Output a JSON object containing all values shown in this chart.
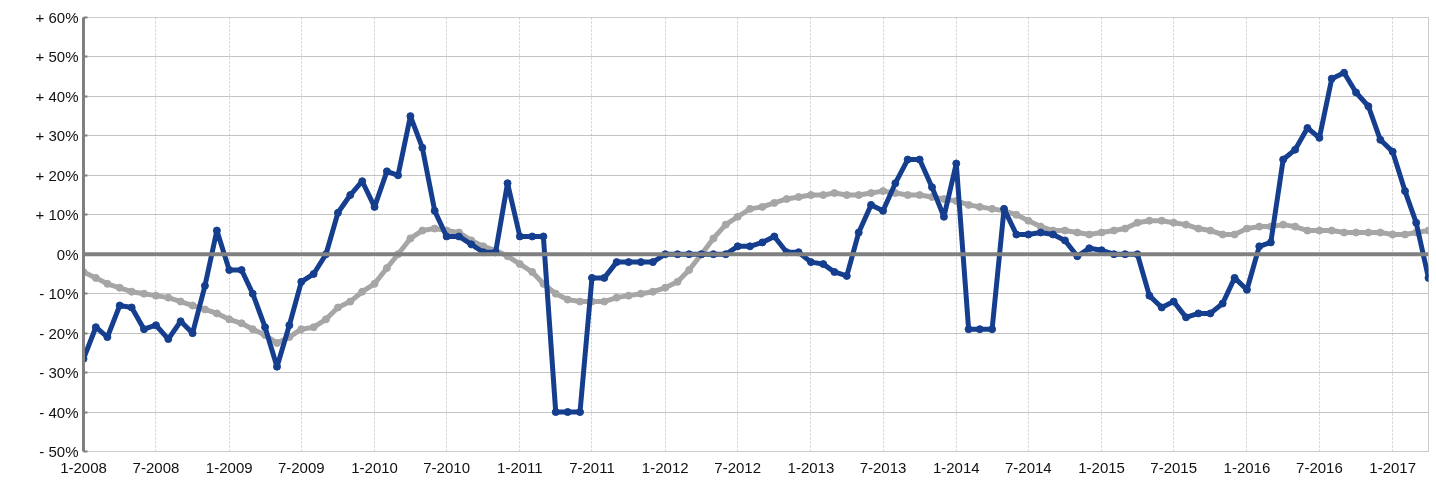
{
  "chart_data": {
    "type": "line",
    "x": [
      "2008-01",
      "2008-02",
      "2008-03",
      "2008-04",
      "2008-05",
      "2008-06",
      "2008-07",
      "2008-08",
      "2008-09",
      "2008-10",
      "2008-11",
      "2008-12",
      "2009-01",
      "2009-02",
      "2009-03",
      "2009-04",
      "2009-05",
      "2009-06",
      "2009-07",
      "2009-08",
      "2009-09",
      "2009-10",
      "2009-11",
      "2009-12",
      "2010-01",
      "2010-02",
      "2010-03",
      "2010-04",
      "2010-05",
      "2010-06",
      "2010-07",
      "2010-08",
      "2010-09",
      "2010-10",
      "2010-11",
      "2010-12",
      "2011-01",
      "2011-02",
      "2011-03",
      "2011-04",
      "2011-05",
      "2011-06",
      "2011-07",
      "2011-08",
      "2011-09",
      "2011-10",
      "2011-11",
      "2011-12",
      "2012-01",
      "2012-02",
      "2012-03",
      "2012-04",
      "2012-05",
      "2012-06",
      "2012-07",
      "2012-08",
      "2012-09",
      "2012-10",
      "2012-11",
      "2012-12",
      "2013-01",
      "2013-02",
      "2013-03",
      "2013-04",
      "2013-05",
      "2013-06",
      "2013-07",
      "2013-08",
      "2013-09",
      "2013-10",
      "2013-11",
      "2013-12",
      "2014-01",
      "2014-02",
      "2014-03",
      "2014-04",
      "2014-05",
      "2014-06",
      "2014-07",
      "2014-08",
      "2014-09",
      "2014-10",
      "2014-11",
      "2014-12",
      "2015-01",
      "2015-02",
      "2015-03",
      "2015-04",
      "2015-05",
      "2015-06",
      "2015-07",
      "2015-08",
      "2015-09",
      "2015-10",
      "2015-11",
      "2015-12",
      "2016-01",
      "2016-02",
      "2016-03",
      "2016-04",
      "2016-05",
      "2016-06",
      "2016-07",
      "2016-08",
      "2016-09",
      "2016-10",
      "2016-11",
      "2016-12",
      "2017-01",
      "2017-02",
      "2017-03",
      "2017-04"
    ],
    "series": [
      {
        "color": "#a6a6a6",
        "values": [
          -4.5,
          -6,
          -7.5,
          -8.5,
          -9.5,
          -10,
          -10.5,
          -11,
          -12,
          -13,
          -14,
          -15,
          -16.5,
          -17.5,
          -19,
          -20.5,
          -22.5,
          -21,
          -19,
          -18.5,
          -16.5,
          -13.5,
          -12,
          -9.5,
          -7.5,
          -3.5,
          0,
          4,
          6,
          6.5,
          6,
          5.5,
          3.5,
          2,
          1,
          -0.5,
          -2.5,
          -4.5,
          -7.5,
          -10,
          -11.5,
          -12,
          -12,
          -12,
          -11,
          -10.5,
          -10,
          -9.5,
          -8.5,
          -7,
          -4,
          0,
          4,
          7.5,
          9.5,
          11.5,
          12,
          13,
          14,
          14.5,
          15,
          15,
          15.5,
          15,
          15,
          15.5,
          16,
          15.5,
          15,
          15,
          14.5,
          14,
          13.5,
          12.5,
          12,
          11.5,
          11,
          10,
          8.5,
          7,
          6,
          6,
          5.5,
          5,
          5.5,
          6,
          6.5,
          8,
          8.5,
          8.5,
          8,
          7.5,
          6.5,
          6,
          5,
          5,
          6.5,
          7,
          7,
          7.5,
          7,
          6,
          6,
          6,
          5.5,
          5.5,
          5.5,
          5.5,
          5,
          5,
          5.5,
          6
        ]
      },
      {
        "color": "#153f8e",
        "values": [
          -26.5,
          -18.5,
          -21,
          -13,
          -13.5,
          -19,
          -18,
          -21.5,
          -17,
          -20,
          -8,
          6,
          -4,
          -4,
          -10,
          -18.5,
          -28.5,
          -18,
          -7,
          -5,
          0,
          10.5,
          15,
          18.5,
          12,
          21,
          20,
          35,
          27,
          11,
          4.5,
          4.5,
          2.5,
          0.5,
          0.5,
          18,
          4.5,
          4.5,
          4.5,
          -40,
          -40,
          -40,
          -6,
          -6,
          -2,
          -2,
          -2,
          -2,
          0,
          0,
          0,
          0,
          0,
          0,
          2,
          2,
          3,
          4.5,
          0.5,
          0.5,
          -2,
          -2.5,
          -4.5,
          -5.5,
          5.5,
          12.5,
          11,
          18,
          24,
          24,
          17,
          9.5,
          23,
          -19,
          -19,
          -19,
          11.5,
          5,
          5,
          5.5,
          5,
          3.5,
          -0.5,
          1.5,
          1,
          0,
          0,
          0,
          -10.5,
          -13.5,
          -12,
          -16,
          -15,
          -15,
          -12.5,
          -6,
          -9,
          2,
          3,
          24,
          26.5,
          32,
          29.5,
          44.5,
          46,
          41,
          37.5,
          29,
          26,
          16,
          8,
          -6
        ]
      }
    ],
    "xlim": [
      "2008-01",
      "2017-04"
    ],
    "xticks": [
      {
        "value": "2008-01",
        "label": "1-2008"
      },
      {
        "value": "2008-07",
        "label": "7-2008"
      },
      {
        "value": "2009-01",
        "label": "1-2009"
      },
      {
        "value": "2009-07",
        "label": "7-2009"
      },
      {
        "value": "2010-01",
        "label": "1-2010"
      },
      {
        "value": "2010-07",
        "label": "7-2010"
      },
      {
        "value": "2011-01",
        "label": "1-2011"
      },
      {
        "value": "2011-07",
        "label": "7-2011"
      },
      {
        "value": "2012-01",
        "label": "1-2012"
      },
      {
        "value": "2012-07",
        "label": "7-2012"
      },
      {
        "value": "2013-01",
        "label": "1-2013"
      },
      {
        "value": "2013-07",
        "label": "7-2013"
      },
      {
        "value": "2014-01",
        "label": "1-2014"
      },
      {
        "value": "2014-07",
        "label": "7-2014"
      },
      {
        "value": "2015-01",
        "label": "1-2015"
      },
      {
        "value": "2015-07",
        "label": "7-2015"
      },
      {
        "value": "2016-01",
        "label": "1-2016"
      },
      {
        "value": "2016-07",
        "label": "7-2016"
      },
      {
        "value": "2017-01",
        "label": "1-2017"
      }
    ],
    "ylim": [
      -50,
      60
    ],
    "yticks": [
      {
        "value": -50,
        "label": "- 50%"
      },
      {
        "value": -40,
        "label": "- 40%"
      },
      {
        "value": -30,
        "label": "- 30%"
      },
      {
        "value": -20,
        "label": "- 20%"
      },
      {
        "value": -10,
        "label": "- 10%"
      },
      {
        "value": 0,
        "label": "0%"
      },
      {
        "value": 10,
        "label": "+ 10%"
      },
      {
        "value": 20,
        "label": "+ 20%"
      },
      {
        "value": 30,
        "label": "+ 30%"
      },
      {
        "value": 40,
        "label": "+ 40%"
      },
      {
        "value": 50,
        "label": "+ 50%"
      },
      {
        "value": 60,
        "label": "+ 60%"
      }
    ],
    "ref_lines": [
      {
        "axis": "y",
        "value": 0,
        "color": "#808080"
      }
    ],
    "grid": true,
    "marker": "circle",
    "line_style": "solid"
  }
}
